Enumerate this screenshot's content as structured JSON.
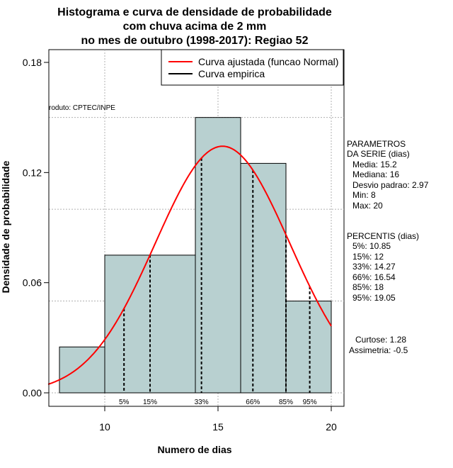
{
  "title": {
    "line1": "Histograma e curva de densidade de probabilidade",
    "line2": "com chuva acima de 2 mm",
    "line3": "no mes de outubro (1998-2017): Regiao 52"
  },
  "credit": "roduto: CPTEC/INPE",
  "chart_data": {
    "type": "bar",
    "subtype": "histogram with density curve",
    "xlabel": "Numero de dias",
    "ylabel": "Densidade de probabilidade",
    "xlim": [
      7.5,
      20.5
    ],
    "ylim": [
      0,
      0.18
    ],
    "x_ticks": [
      10,
      15,
      20
    ],
    "y_ticks": [
      0.0,
      0.06,
      0.12,
      0.18
    ],
    "y_tick_labels": [
      "0.00",
      "0.06",
      "0.12",
      "0.18"
    ],
    "bins": [
      {
        "from": 8,
        "to": 10,
        "density": 0.025
      },
      {
        "from": 10,
        "to": 14,
        "density": 0.075
      },
      {
        "from": 14,
        "to": 16,
        "density": 0.15
      },
      {
        "from": 16,
        "to": 18,
        "density": 0.125
      },
      {
        "from": 18,
        "to": 20,
        "density": 0.05
      }
    ],
    "series": [
      {
        "name": "Curva ajustada (funcao Normal)",
        "color": "#ff0000",
        "mean": 15.2,
        "sd": 2.97
      },
      {
        "name": "Curva empirica",
        "color": "#000000"
      }
    ],
    "percentile_lines": [
      {
        "label": "5%",
        "x": 10.85
      },
      {
        "label": "15%",
        "x": 12
      },
      {
        "label": "33%",
        "x": 14.27
      },
      {
        "label": "66%",
        "x": 16.54
      },
      {
        "label": "85%",
        "x": 18
      },
      {
        "label": "95%",
        "x": 19.05
      }
    ],
    "grid": true,
    "legend_position": "top-right"
  },
  "params": {
    "heading1": "PARAMETROS",
    "heading2": "DA SERIE (dias)",
    "media": "Media: 15.2",
    "mediana": "Mediana: 16",
    "desvio": "Desvio padrao: 2.97",
    "min": "Min: 8",
    "max": "Max: 20"
  },
  "percentis": {
    "heading": "PERCENTIS (dias)",
    "p5": "5%: 10.85",
    "p15": "15%: 12",
    "p33": "33%: 14.27",
    "p66": "66%: 16.54",
    "p85": "85%: 18",
    "p95": "95%: 19.05"
  },
  "stats": {
    "curtose": "Curtose: 1.28",
    "assimetria": "Assimetria: -0.5"
  },
  "colors": {
    "bar_fill": "#b8d0d0",
    "curve": "#ff0000",
    "grid": "#b0b0b0"
  }
}
